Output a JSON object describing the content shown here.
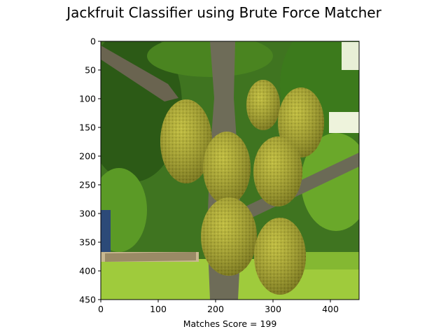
{
  "figure": {
    "title": "Jackfruit Classifier using Brute Force Matcher",
    "xlabel_prefix": "Matches Score = ",
    "score": "199"
  },
  "image_panel": {
    "content": "jackfruit-tree-photo",
    "x_ticks": [
      "0",
      "100",
      "200",
      "300",
      "400"
    ],
    "y_ticks": [
      "0",
      "50",
      "100",
      "150",
      "200",
      "250",
      "300",
      "350",
      "400",
      "450"
    ],
    "x_tick_values": [
      0,
      100,
      200,
      300,
      400
    ],
    "y_tick_values": [
      0,
      50,
      100,
      150,
      200,
      250,
      300,
      350,
      400,
      450
    ],
    "xlim": [
      0,
      450
    ],
    "ylim": [
      450,
      0
    ]
  },
  "colors": {
    "sky": "#f3f7e8",
    "leaf_dark": "#2f5a18",
    "leaf_mid": "#4f8a24",
    "leaf_light": "#8fc23a",
    "grass": "#a5d040",
    "trunk": "#6a6a55",
    "fruit": "#b3b236",
    "fruit_shadow": "#7c7a1c"
  }
}
